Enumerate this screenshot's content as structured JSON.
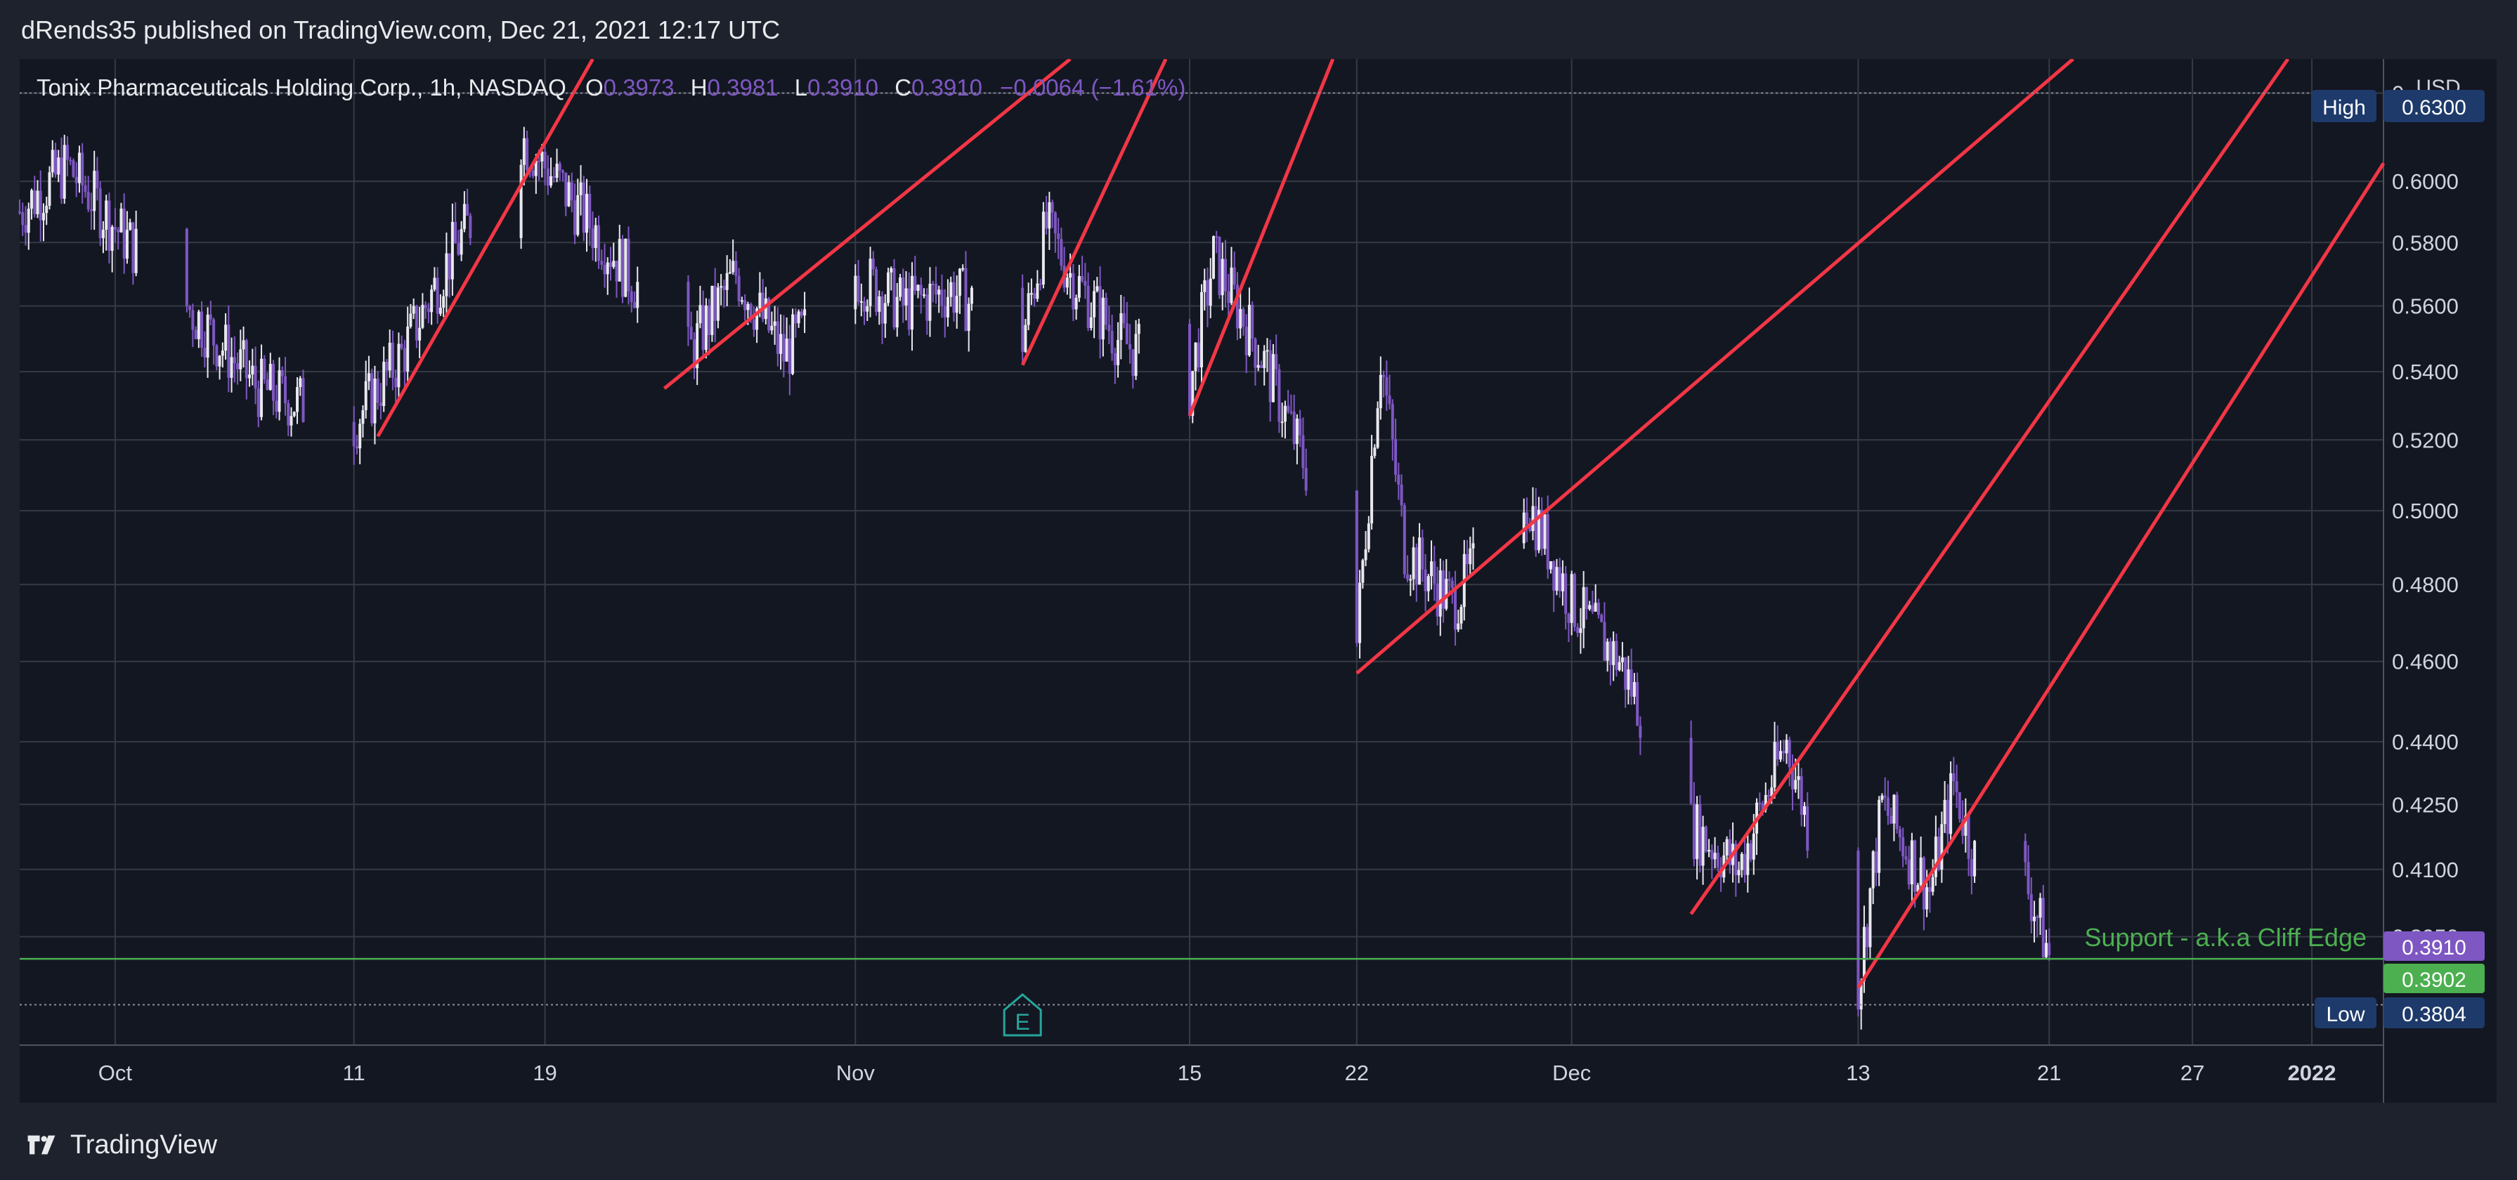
{
  "header": {
    "published": "dRends35 published on TradingView.com, Dec 21, 2021 12:17 UTC"
  },
  "footer": {
    "brand": "TradingView"
  },
  "legend": {
    "symbol": "Tonix Pharmaceuticals Holding Corp., 1h, NASDAQ",
    "o_label": "O",
    "o_value": "0.3973",
    "h_label": "H",
    "h_value": "0.3981",
    "l_label": "L",
    "l_value": "0.3910",
    "c_label": "C",
    "c_value": "0.3910",
    "change": "−0.0064 (−1.61%)"
  },
  "colors": {
    "background": "#131722",
    "panel": "#1e222d",
    "grid": "#363a45",
    "candle": "#7e57c2",
    "candle_light": "#e8e8ee",
    "trendline": "#f23645",
    "support": "#4caf50",
    "text": "#d1d4dc",
    "high_low_badge": "#1e3a6b"
  },
  "chart_data": {
    "type": "candlestick",
    "title": "Tonix Pharmaceuticals Holding Corp., 1h, NASDAQ",
    "y_unit": "USD",
    "x_axis": {
      "start": "2021-09-27",
      "end": "2022-01-04"
    },
    "ylim": [
      0.372,
      0.642
    ],
    "scale": "log",
    "grid": true,
    "x_ticks": [
      {
        "date": "2021-10-01",
        "label": "Oct",
        "bold": false
      },
      {
        "date": "2021-10-11",
        "label": "11",
        "bold": false
      },
      {
        "date": "2021-10-19",
        "label": "19",
        "bold": false
      },
      {
        "date": "2021-11-01",
        "label": "Nov",
        "bold": false
      },
      {
        "date": "2021-11-15",
        "label": "15",
        "bold": false
      },
      {
        "date": "2021-11-22",
        "label": "22",
        "bold": false
      },
      {
        "date": "2021-12-01",
        "label": "Dec",
        "bold": false
      },
      {
        "date": "2021-12-13",
        "label": "13",
        "bold": false
      },
      {
        "date": "2021-12-21",
        "label": "21",
        "bold": false
      },
      {
        "date": "2021-12-27",
        "label": "27",
        "bold": false
      },
      {
        "date": "2022-01-01",
        "label": "2022",
        "bold": true
      }
    ],
    "y_ticks": [
      "0.6300",
      "0.6000",
      "0.5800",
      "0.5600",
      "0.5400",
      "0.5200",
      "0.5000",
      "0.4800",
      "0.4600",
      "0.4400",
      "0.4250",
      "0.4100",
      "0.3950"
    ],
    "price_path": [
      [
        "2021-09-27",
        0.59
      ],
      [
        "2021-09-29",
        0.605
      ],
      [
        "2021-10-01",
        0.585
      ],
      [
        "2021-10-04",
        0.56
      ],
      [
        "2021-10-07",
        0.535
      ],
      [
        "2021-10-11",
        0.525
      ],
      [
        "2021-10-13",
        0.545
      ],
      [
        "2021-10-15",
        0.575
      ],
      [
        "2021-10-18",
        0.615
      ],
      [
        "2021-10-19",
        0.605
      ],
      [
        "2021-10-21",
        0.585
      ],
      [
        "2021-10-25",
        0.545
      ],
      [
        "2021-10-27",
        0.57
      ],
      [
        "2021-10-29",
        0.545
      ],
      [
        "2021-11-01",
        0.57
      ],
      [
        "2021-11-03",
        0.56
      ],
      [
        "2021-11-05",
        0.565
      ],
      [
        "2021-11-08",
        0.55
      ],
      [
        "2021-11-09",
        0.585
      ],
      [
        "2021-11-10",
        0.57
      ],
      [
        "2021-11-12",
        0.55
      ],
      [
        "2021-11-15",
        0.535
      ],
      [
        "2021-11-16",
        0.575
      ],
      [
        "2021-11-18",
        0.545
      ],
      [
        "2021-11-20",
        0.51
      ],
      [
        "2021-11-22",
        0.465
      ],
      [
        "2021-11-23",
        0.545
      ],
      [
        "2021-11-24",
        0.49
      ],
      [
        "2021-11-26",
        0.475
      ],
      [
        "2021-11-29",
        0.505
      ],
      [
        "2021-12-01",
        0.475
      ],
      [
        "2021-12-03",
        0.46
      ],
      [
        "2021-12-06",
        0.42
      ],
      [
        "2021-12-08",
        0.41
      ],
      [
        "2021-12-10",
        0.44
      ],
      [
        "2021-12-12",
        0.395
      ],
      [
        "2021-12-13",
        0.384
      ],
      [
        "2021-12-14",
        0.425
      ],
      [
        "2021-12-16",
        0.405
      ],
      [
        "2021-12-17",
        0.43
      ],
      [
        "2021-12-18",
        0.41
      ],
      [
        "2021-12-19",
        0.435
      ],
      [
        "2021-12-20",
        0.408
      ],
      [
        "2021-12-21",
        0.391
      ]
    ],
    "trendlines": [
      {
        "from": [
          "2021-10-12",
          0.521
        ],
        "to": [
          "2021-10-21",
          0.642
        ]
      },
      {
        "from": [
          "2021-10-24",
          0.535
        ],
        "to": [
          "2021-11-10",
          0.642
        ]
      },
      {
        "from": [
          "2021-11-08",
          0.542
        ],
        "to": [
          "2021-11-14",
          0.642
        ]
      },
      {
        "from": [
          "2021-11-15",
          0.527
        ],
        "to": [
          "2021-11-21",
          0.642
        ]
      },
      {
        "from": [
          "2021-11-22",
          0.457
        ],
        "to": [
          "2021-12-22",
          0.642
        ]
      },
      {
        "from": [
          "2021-12-06",
          0.4
        ],
        "to": [
          "2021-12-31",
          0.642
        ]
      },
      {
        "from": [
          "2021-12-13",
          0.384
        ],
        "to": [
          "2022-01-04",
          0.606
        ]
      }
    ],
    "annotations": {
      "support_label": "Support - a.k.a Cliff Edge",
      "support_price": 0.3902,
      "high_label": "High",
      "high_value": "0.6300",
      "low_label": "Low",
      "low_value": "0.3804",
      "last_price": "0.3910",
      "support_badge": "0.3902",
      "currency": "USD",
      "earnings_marker": "E",
      "earnings_date": "2021-11-08"
    }
  }
}
